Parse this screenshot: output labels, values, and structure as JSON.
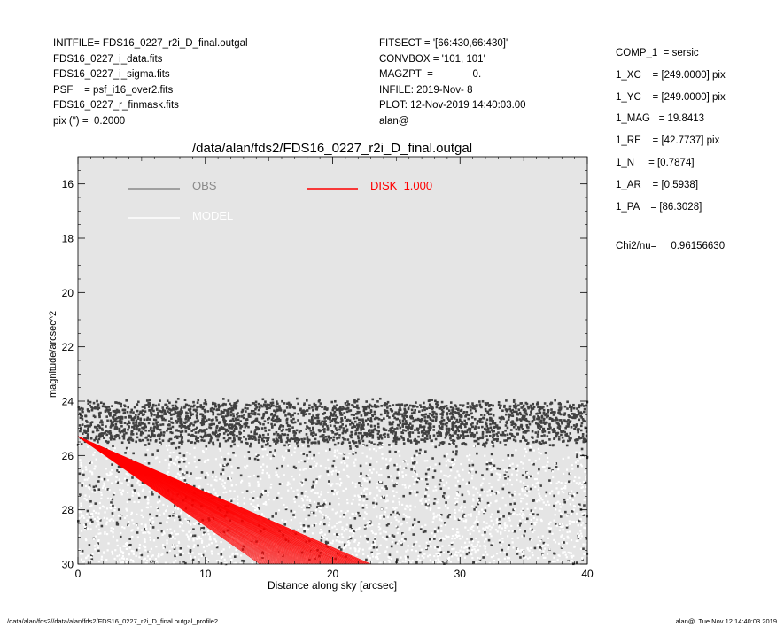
{
  "header_left": [
    "INITFILE= FDS16_0227_r2i_D_final.outgal",
    "FDS16_0227_i_data.fits",
    "FDS16_0227_i_sigma.fits",
    "PSF    = psf_i16_over2.fits",
    "FDS16_0227_r_finmask.fits",
    "pix (\") =  0.2000"
  ],
  "header_mid": [
    "FITSECT = '[66:430,66:430]'",
    "CONVBOX = '101, 101'",
    "MAGZPT  =              0.",
    "INFILE: 2019-Nov- 8",
    "PLOT: 12-Nov-2019 14:40:03.00",
    "alan@"
  ],
  "params": [
    "COMP_1  = sersic",
    "1_XC    = [249.0000] pix",
    "1_YC    = [249.0000] pix",
    "1_MAG   = 19.8413",
    "1_RE    = [42.7737] pix",
    "1_N     = [0.7874]",
    "1_AR    = [0.5938]",
    "1_PA    = [86.3028]"
  ],
  "chi2": "Chi2/nu=     0.96156630",
  "footer_left": "/data/alan/fds2//data/alan/fds2/FDS16_0227_r2i_D_final.outgal_profile2",
  "footer_right": "alan@  Tue Nov 12 14:40:03 2019",
  "colors": {
    "plot_bg": "#e5e5e5",
    "obs": "#404040",
    "obs_legend": "#8a8a8a",
    "model": "#ffffff",
    "disk": "#ff0000"
  },
  "chart_data": {
    "type": "scatter",
    "title": "/data/alan/fds2/FDS16_0227_r2i_D_final.outgal",
    "xlabel": "Distance along sky [arcsec]",
    "ylabel": "magnitude/arcsec^2",
    "xlim": [
      0,
      40
    ],
    "ylim": [
      30,
      15
    ],
    "y_inverted": true,
    "xticks": [
      0,
      10,
      20,
      30,
      40
    ],
    "yticks": [
      16,
      18,
      20,
      22,
      24,
      26,
      28,
      30
    ],
    "grid": false,
    "legend": [
      {
        "label": "OBS",
        "color": "#8a8a8a"
      },
      {
        "label": "MODEL",
        "color": "#ffffff"
      },
      {
        "label": "DISK  1.000",
        "color": "#ff0000"
      }
    ],
    "series": [
      {
        "name": "OBS",
        "kind": "points",
        "description_values": {
          "x_range": [
            0,
            40
          ],
          "mag_band": [
            24.0,
            25.6
          ],
          "scatter_below": [
            25.6,
            30
          ]
        }
      },
      {
        "name": "MODEL",
        "kind": "points",
        "description_values": {
          "x_range": [
            0,
            40
          ],
          "mag_range": [
            25.5,
            30
          ]
        }
      },
      {
        "name": "DISK  1.000",
        "kind": "lines",
        "profiles": [
          {
            "x": [
              0,
              14.3
            ],
            "y": [
              25.3,
              30.0
            ]
          },
          {
            "x": [
              0,
              23.0
            ],
            "y": [
              25.3,
              30.0
            ]
          }
        ]
      }
    ]
  }
}
